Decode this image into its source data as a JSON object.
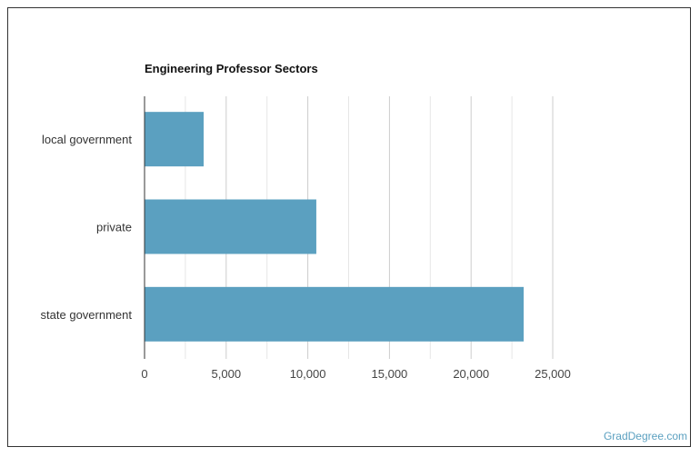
{
  "chart_data": {
    "type": "bar",
    "orientation": "horizontal",
    "title": "Engineering Professor Sectors",
    "categories": [
      "local government",
      "private",
      "state government"
    ],
    "values": [
      3620,
      10520,
      23220
    ],
    "xlim": [
      0,
      25000
    ],
    "xticks": [
      "0",
      "5,000",
      "10,000",
      "15,000",
      "20,000",
      "25,000"
    ],
    "xtick_values": [
      0,
      5000,
      10000,
      15000,
      20000,
      25000
    ],
    "grid": true,
    "bar_color": "#5ba0c0"
  },
  "credit": "GradDegree.com"
}
